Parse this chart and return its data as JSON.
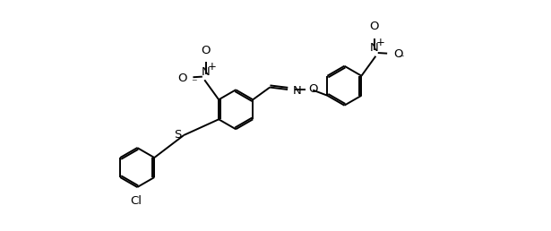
{
  "bg_color": "#ffffff",
  "line_color": "#000000",
  "line_width": 1.4,
  "font_size": 9.5,
  "fig_width": 6.15,
  "fig_height": 2.58,
  "dpi": 100,
  "xlim": [
    0,
    13
  ],
  "ylim": [
    -4.2,
    4.2
  ]
}
